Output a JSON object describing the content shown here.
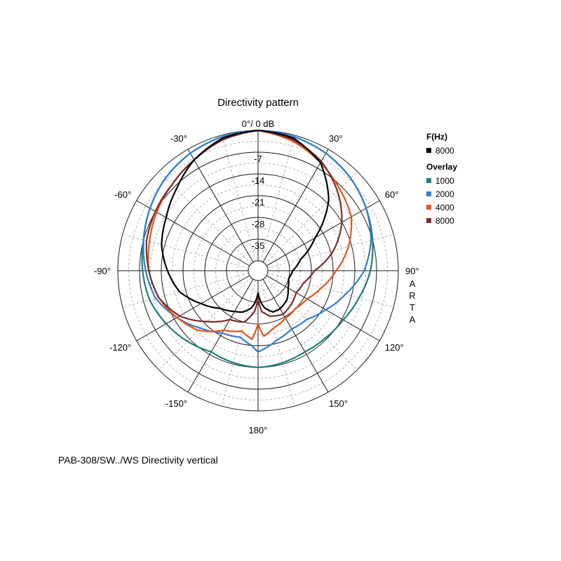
{
  "title": "Directivity pattern",
  "caption": "PAB-308/SW../WS  Directivity vertical",
  "watermark": "ARTA",
  "chart_data": {
    "type": "polar",
    "radial_labels": [
      "0°/ 0 dB",
      "-7",
      "-14",
      "-21",
      "-28",
      "-35"
    ],
    "radial_values_db": [
      0,
      -7,
      -14,
      -21,
      -28,
      -35
    ],
    "r_min_db": -42,
    "r_max_db": 0,
    "angle_labels": [
      {
        "angle": 30,
        "label": "30°"
      },
      {
        "angle": 60,
        "label": "60°"
      },
      {
        "angle": 90,
        "label": "90°"
      },
      {
        "angle": 120,
        "label": "120°"
      },
      {
        "angle": 150,
        "label": "150°"
      },
      {
        "angle": 180,
        "label": "180°"
      },
      {
        "angle": -150,
        "label": "-150°"
      },
      {
        "angle": -120,
        "label": "-120°"
      },
      {
        "angle": -90,
        "label": "-90°"
      },
      {
        "angle": -60,
        "label": "-60°"
      },
      {
        "angle": -30,
        "label": "-30°"
      }
    ],
    "legend": {
      "primary_header": "F(Hz)",
      "primary": [
        {
          "name": "8000",
          "color": "#000000"
        }
      ],
      "overlay_header": "Overlay",
      "overlay": [
        {
          "name": "1000",
          "color": "#1f7d7a"
        },
        {
          "name": "2000",
          "color": "#2f7fd0"
        },
        {
          "name": "4000",
          "color": "#e5541c"
        },
        {
          "name": "8000",
          "color": "#7a2e2e"
        }
      ]
    },
    "series": [
      {
        "name": "8000",
        "color": "#000000",
        "angles": [
          0,
          15,
          30,
          45,
          60,
          75,
          90,
          105,
          120,
          135,
          150,
          160,
          170,
          175,
          180,
          185,
          190,
          200,
          210,
          225,
          240,
          255,
          270,
          285,
          300,
          315,
          330,
          345,
          360
        ],
        "db": [
          0,
          -1,
          -5,
          -13,
          -24,
          -31,
          -34,
          -35,
          -34,
          -32,
          -31,
          -31,
          -33,
          -35,
          -38,
          -35,
          -33,
          -31,
          -30,
          -28,
          -24,
          -19,
          -16,
          -13,
          -11,
          -8,
          -4,
          -1,
          0
        ]
      },
      {
        "name": "1000",
        "color": "#1f7d7a",
        "angles": [
          0,
          15,
          30,
          45,
          60,
          75,
          90,
          105,
          120,
          135,
          150,
          165,
          180,
          195,
          210,
          225,
          240,
          255,
          270,
          285,
          300,
          315,
          330,
          345,
          360
        ],
        "db": [
          0,
          -0.5,
          -1.5,
          -3,
          -5,
          -7,
          -9,
          -11.5,
          -13.5,
          -14.5,
          -15,
          -14.5,
          -14,
          -14.5,
          -15,
          -13,
          -11,
          -9,
          -8,
          -7,
          -5,
          -3,
          -1.5,
          -0.5,
          0
        ]
      },
      {
        "name": "2000",
        "color": "#2f7fd0",
        "angles": [
          0,
          15,
          30,
          45,
          60,
          75,
          90,
          105,
          120,
          135,
          150,
          165,
          175,
          180,
          185,
          195,
          210,
          225,
          240,
          255,
          270,
          285,
          300,
          315,
          330,
          345,
          360
        ],
        "db": [
          0,
          -0.5,
          -1.5,
          -3,
          -5,
          -7.5,
          -11,
          -16,
          -20,
          -23,
          -23.5,
          -22,
          -20,
          -19,
          -21,
          -23,
          -22,
          -19,
          -15,
          -11,
          -9,
          -7,
          -5,
          -3,
          -1.5,
          -0.5,
          0
        ]
      },
      {
        "name": "4000",
        "color": "#e5541c",
        "angles": [
          0,
          15,
          30,
          45,
          60,
          75,
          90,
          105,
          120,
          135,
          150,
          165,
          175,
          180,
          185,
          195,
          210,
          225,
          240,
          255,
          270,
          285,
          300,
          315,
          330,
          345,
          360
        ],
        "db": [
          0,
          -2,
          -5,
          -8,
          -10.5,
          -15,
          -20,
          -24,
          -27,
          -28,
          -27.5,
          -26,
          -24,
          -28,
          -23,
          -25,
          -23,
          -18,
          -15,
          -12,
          -10,
          -9,
          -7.5,
          -6,
          -4,
          -1.5,
          0
        ]
      },
      {
        "name": "8000",
        "color": "#7a2e2e",
        "angles": [
          0,
          15,
          30,
          45,
          60,
          75,
          90,
          105,
          120,
          135,
          150,
          165,
          175,
          180,
          185,
          195,
          210,
          225,
          240,
          255,
          270,
          285,
          300,
          315,
          330,
          345,
          360
        ],
        "db": [
          0,
          -1.5,
          -4.5,
          -9,
          -14,
          -20,
          -27,
          -30,
          -31,
          -30,
          -29,
          -30,
          -32,
          -36,
          -32,
          -28,
          -27,
          -22,
          -16,
          -12,
          -10,
          -8,
          -7,
          -6,
          -4,
          -1.5,
          0
        ]
      }
    ]
  }
}
